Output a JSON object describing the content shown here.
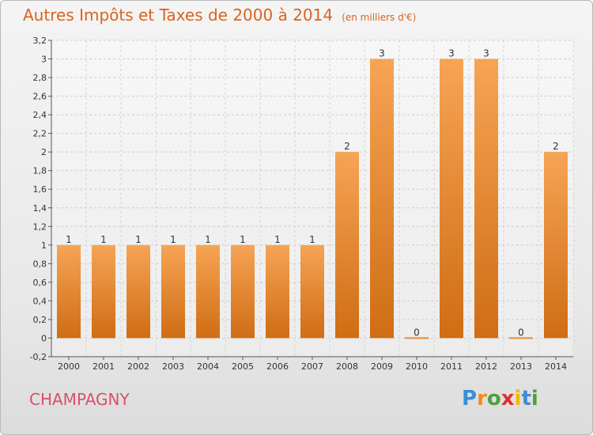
{
  "header": {
    "title": "Autres Impôts et Taxes de 2000 à 2014",
    "unit": "(en milliers d'€)"
  },
  "commune": "CHAMPAGNY",
  "logo": {
    "letters": [
      "P",
      "r",
      "o",
      "x",
      "i",
      "t",
      "i"
    ],
    "colors": [
      "#3b8fd6",
      "#f08a1c",
      "#4aa23c",
      "#e0302c",
      "#f3b800",
      "#3b8fd6",
      "#4aa23c"
    ]
  },
  "chart_data": {
    "type": "bar",
    "title": "Autres Impôts et Taxes de 2000 à 2014",
    "xlabel": "",
    "ylabel": "",
    "categories": [
      "2000",
      "2001",
      "2002",
      "2003",
      "2004",
      "2005",
      "2006",
      "2007",
      "2008",
      "2009",
      "2010",
      "2011",
      "2012",
      "2013",
      "2014"
    ],
    "values": [
      1,
      1,
      1,
      1,
      1,
      1,
      1,
      1,
      2,
      3,
      0,
      3,
      3,
      0,
      2
    ],
    "data_labels": [
      "1",
      "1",
      "1",
      "1",
      "1",
      "1",
      "1",
      "1",
      "2",
      "3",
      "0",
      "3",
      "3",
      "0",
      "2"
    ],
    "ylim": [
      -0.2,
      3.2
    ],
    "yticks": [
      -0.2,
      0,
      0.2,
      0.4,
      0.6,
      0.8,
      1,
      1.2,
      1.4,
      1.6,
      1.8,
      2,
      2.2,
      2.4,
      2.6,
      2.8,
      3,
      3.2
    ],
    "ytick_labels": [
      "-0,2",
      "0",
      "0,2",
      "0,4",
      "0,6",
      "0,8",
      "1",
      "1,2",
      "1,4",
      "1,6",
      "1,8",
      "2",
      "2,2",
      "2,4",
      "2,6",
      "2,8",
      "3",
      "3,2"
    ],
    "grid": true,
    "legend": "none",
    "bar_color": "#e58a30"
  }
}
